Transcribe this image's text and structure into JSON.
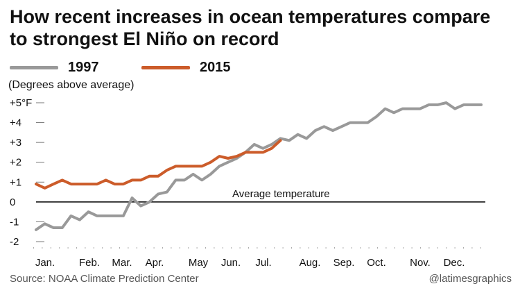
{
  "title": "How recent increases in ocean temperatures compare to strongest El Niño on record",
  "units_note": "(Degrees above average)",
  "source": "Source: NOAA Climate Prediction Center",
  "credit": "@latimesgraphics",
  "chart_data": {
    "type": "line",
    "ylim": [
      -2,
      5
    ],
    "y_ticks": [
      {
        "value": 5,
        "label": "+5°F"
      },
      {
        "value": 4,
        "label": "+4"
      },
      {
        "value": 3,
        "label": "+3"
      },
      {
        "value": 2,
        "label": "+2"
      },
      {
        "value": 1,
        "label": "+1"
      },
      {
        "value": 0,
        "label": "0"
      },
      {
        "value": -1,
        "label": "-1"
      },
      {
        "value": -2,
        "label": "-2"
      }
    ],
    "x_ticks": [
      "Jan.",
      "Feb.",
      "Mar.",
      "Apr.",
      "May",
      "Jun.",
      "Jul.",
      "Aug.",
      "Sep.",
      "Oct.",
      "Nov.",
      "Dec."
    ],
    "x_unit": "week of year (1–52)",
    "reference_line": {
      "value": 0,
      "label": "Average temperature"
    },
    "series": [
      {
        "name": "1997",
        "color": "#999999",
        "values": [
          -1.4,
          -1.1,
          -1.3,
          -1.3,
          -0.7,
          -0.9,
          -0.5,
          -0.7,
          -0.7,
          -0.7,
          -0.7,
          0.2,
          -0.2,
          0.0,
          0.4,
          0.5,
          1.1,
          1.1,
          1.4,
          1.1,
          1.4,
          1.8,
          2.0,
          2.2,
          2.5,
          2.9,
          2.7,
          2.9,
          3.2,
          3.1,
          3.4,
          3.2,
          3.6,
          3.8,
          3.6,
          3.8,
          4.0,
          4.0,
          4.0,
          4.3,
          4.7,
          4.5,
          4.7,
          4.7,
          4.7,
          4.9,
          4.9,
          5.0,
          4.7,
          4.9,
          4.9,
          4.9
        ]
      },
      {
        "name": "2015",
        "color": "#cc5c2a",
        "values": [
          0.9,
          0.7,
          0.9,
          1.1,
          0.9,
          0.9,
          0.9,
          0.9,
          1.1,
          0.9,
          0.9,
          1.1,
          1.1,
          1.3,
          1.3,
          1.6,
          1.8,
          1.8,
          1.8,
          1.8,
          2.0,
          2.3,
          2.2,
          2.3,
          2.5,
          2.5,
          2.5,
          2.7,
          3.1
        ]
      }
    ]
  }
}
